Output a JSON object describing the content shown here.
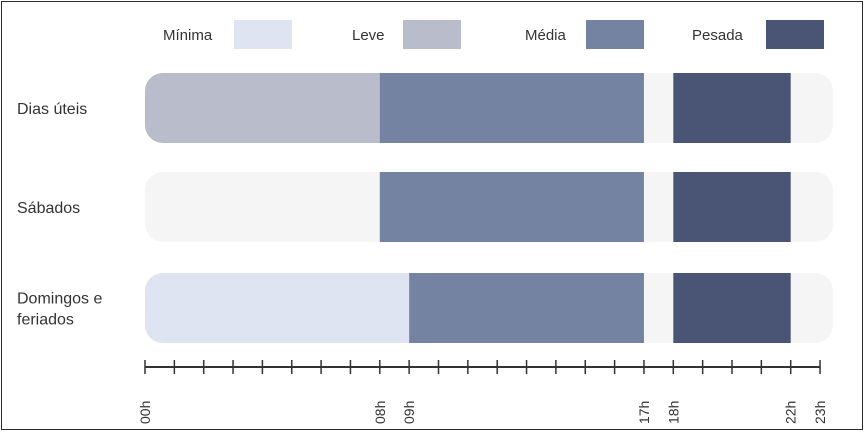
{
  "chart_data": {
    "type": "bar",
    "orientation": "horizontal-timeline",
    "legend": [
      {
        "name": "Mínima",
        "color": "#dfe4f3"
      },
      {
        "name": "Leve",
        "color": "#b8bccb"
      },
      {
        "name": "Média",
        "color": "#7583a2"
      },
      {
        "name": "Pesada",
        "color": "#4a5575"
      }
    ],
    "track_color": "#f5f5f5",
    "rows": [
      {
        "label_lines": [
          "Dias úteis"
        ],
        "segments": [
          {
            "level": "Leve",
            "start": 0,
            "end": 8
          },
          {
            "level": "Média",
            "start": 8,
            "end": 17
          },
          {
            "level": "Pesada",
            "start": 18,
            "end": 22
          }
        ]
      },
      {
        "label_lines": [
          "Sábados"
        ],
        "segments": [
          {
            "level": "Média",
            "start": 8,
            "end": 17
          },
          {
            "level": "Pesada",
            "start": 18,
            "end": 22
          }
        ]
      },
      {
        "label_lines": [
          "Domingos e",
          "feriados"
        ],
        "segments": [
          {
            "level": "Mínima",
            "start": 0,
            "end": 9
          },
          {
            "level": "Média",
            "start": 9,
            "end": 17
          },
          {
            "level": "Pesada",
            "start": 18,
            "end": 22
          }
        ]
      }
    ],
    "x_range": [
      0,
      23
    ],
    "minor_tick_step": 1,
    "tick_labels": [
      {
        "hour": 0,
        "text": "00h"
      },
      {
        "hour": 8,
        "text": "08h"
      },
      {
        "hour": 9,
        "text": "09h"
      },
      {
        "hour": 17,
        "text": "17h"
      },
      {
        "hour": 18,
        "text": "18h"
      },
      {
        "hour": 22,
        "text": "22h"
      },
      {
        "hour": 23,
        "text": "23h"
      }
    ]
  }
}
